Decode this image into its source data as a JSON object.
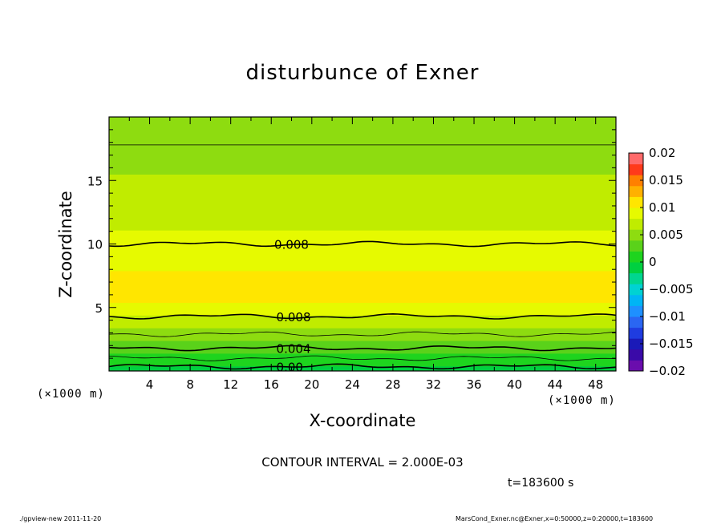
{
  "chart_data": {
    "type": "contour",
    "title": "disturbunce of Exner",
    "xlabel": "X-coordinate",
    "ylabel": "Z-coordinate",
    "x_unit": "(×1000 m)",
    "y_unit": "(×1000 m)",
    "xlim": [
      0,
      50
    ],
    "ylim": [
      0,
      20
    ],
    "x_ticks": [
      4,
      8,
      12,
      16,
      20,
      24,
      28,
      32,
      36,
      40,
      44,
      48
    ],
    "y_ticks": [
      5,
      10,
      15
    ],
    "contour_interval": "CONTOUR INTERVAL = 2.000E-03",
    "time": "t=183600 s",
    "contour_lines": [
      {
        "level": 0.0,
        "z_km": 0.35,
        "label": "0.00"
      },
      {
        "level": 0.002,
        "z_km": 1.0
      },
      {
        "level": 0.004,
        "z_km": 1.8,
        "label": "0.004"
      },
      {
        "level": 0.006,
        "z_km": 2.9
      },
      {
        "level": 0.008,
        "z_km": 4.3,
        "label": "0.008"
      },
      {
        "level": 0.008,
        "z_km": 10.0,
        "label": "0.008"
      },
      {
        "level": 0.006,
        "z_km": 17.8
      }
    ],
    "colorbar": {
      "tick_labels": [
        "0.02",
        "0.015",
        "0.01",
        "0.005",
        "0",
        "−0.005",
        "−0.01",
        "−0.015",
        "−0.02"
      ],
      "levels": [
        -0.02,
        -0.018,
        -0.016,
        -0.014,
        -0.012,
        -0.01,
        -0.008,
        -0.006,
        -0.004,
        -0.002,
        0.0,
        0.002,
        0.004,
        0.006,
        0.008,
        0.01,
        0.012,
        0.014,
        0.016,
        0.018,
        0.02
      ],
      "colors": [
        "#6a0dad",
        "#3a0aa8",
        "#1a1ab8",
        "#1f3ce0",
        "#2a66f2",
        "#1e90ff",
        "#00b5f5",
        "#00d2d2",
        "#00d68f",
        "#00d040",
        "#1ed41e",
        "#5ad21a",
        "#8edc10",
        "#c0ec00",
        "#e6fa00",
        "#ffe600",
        "#ffb000",
        "#ff8000",
        "#ff3a1a",
        "#ff6a6a"
      ]
    }
  },
  "footer": {
    "left": "./gpview-new   2011-11-20",
    "right": "MarsCond_Exner.nc@Exner,x=0:50000,z=0:20000,t=183600"
  }
}
